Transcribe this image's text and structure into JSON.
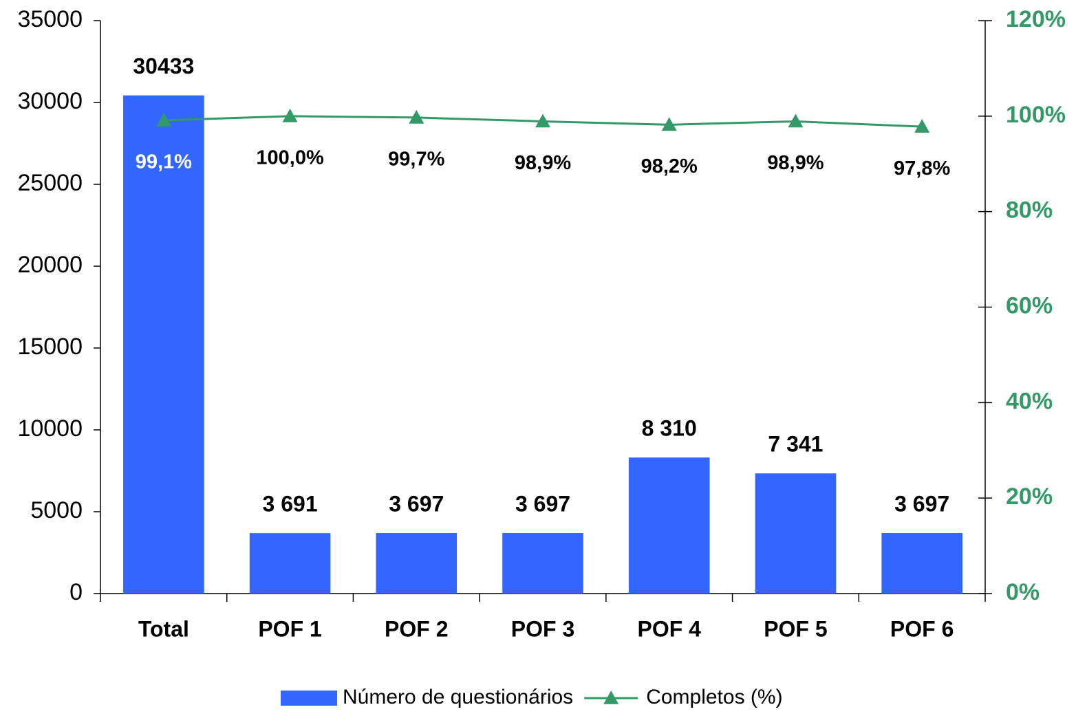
{
  "chart_data": {
    "type": "bar",
    "categories": [
      "Total",
      "POF 1",
      "POF 2",
      "POF 3",
      "POF 4",
      "POF 5",
      "POF 6"
    ],
    "series": [
      {
        "name": "Número de questionários",
        "type": "bar",
        "color": "#3366ff",
        "values": [
          30433,
          3691,
          3697,
          3697,
          8310,
          7341,
          3697
        ],
        "value_labels": [
          "30433",
          "3 691",
          "3 697",
          "3 697",
          "8 310",
          "7 341",
          "3 697"
        ]
      },
      {
        "name": "Completos (%)",
        "type": "line",
        "axis": "y2",
        "color": "#339966",
        "marker": "triangle",
        "values": [
          99.1,
          100.0,
          99.7,
          98.9,
          98.2,
          98.9,
          97.8
        ],
        "value_labels": [
          "99,1%",
          "100,0%",
          "99,7%",
          "98,9%",
          "98,2%",
          "98,9%",
          "97,8%"
        ]
      }
    ],
    "ylim": [
      0,
      35000
    ],
    "yticks": [
      0,
      5000,
      10000,
      15000,
      20000,
      25000,
      30000,
      35000
    ],
    "y2lim": [
      0,
      120
    ],
    "y2ticks": [
      {
        "value": 0,
        "label": "0%"
      },
      {
        "value": 20,
        "label": "20%"
      },
      {
        "value": 40,
        "label": "40%"
      },
      {
        "value": 60,
        "label": "60%"
      },
      {
        "value": 80,
        "label": "80%"
      },
      {
        "value": 100,
        "label": "100%"
      },
      {
        "value": 120,
        "label": "120%"
      }
    ],
    "legend": "bottom"
  }
}
